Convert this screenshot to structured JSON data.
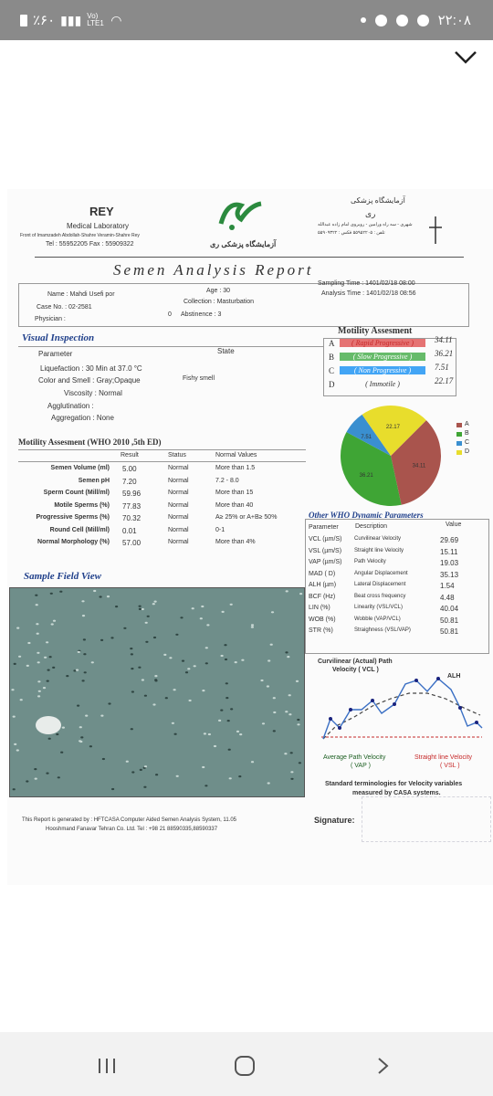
{
  "status_bar": {
    "battery": "٪۶۰",
    "network": "Vo) LTE1",
    "time": "۲۲:۰۸"
  },
  "report": {
    "lab_title": "REY",
    "lab_subtitle": "Medical Laboratory",
    "lab_address": "Front of Imamzadeh Abdollah-Shahre Veramin-Shahre Rey",
    "lab_phone": "Tel : 55952205     Fax : 55909322",
    "lab_fa_title": "آزمایشگاه پزشکی",
    "lab_fa_name": "ری",
    "lab_fa_address": "شهری - سه راه ورامین - روبروی امام زاده عبدالله",
    "lab_fa_phone": "تلفن : ۵۵۹۵۲۲۰۵   فکس : ۵۵۹۰۹۳۲۲",
    "lab_fa_logo_text": "آزمایشگاه پزشکی ری",
    "main_title": "Semen  Analysis  Report",
    "name": "Name : Mahdi Usefi por",
    "case_no": "Case No. : 02-2581",
    "physician": "Physician :",
    "age": "Age : 30",
    "collection": "Collection : Masturbation",
    "abstinence_zero": "0",
    "abstinence": "Abstinence : 3",
    "sampling_time": "Sampling Time : 1401/02/18  08:00",
    "analysis_time": "Analysis Time : 1401/02/18  08:56",
    "visual_inspection": "Visual Inspection",
    "parameter_header": "Parameter",
    "state_header": "State",
    "liquefaction": "Liquefaction :  30 Min at 37.0 °C",
    "color_smell": "Color and Smell :  Gray;Opaque",
    "fishy_smell": "Fishy smell",
    "viscosity": "Viscosity :  Normal",
    "agglutination": "Agglutination :",
    "aggregation": "Aggregation :  None",
    "motility_title": "Motility Assesment",
    "motility_rows": [
      {
        "letter": "A",
        "label": "( Rapid Progressive )",
        "value": "34.11"
      },
      {
        "letter": "B",
        "label": "( Slow Progressive )",
        "value": "36.21"
      },
      {
        "letter": "C",
        "label": "( Non Progressive )",
        "value": "7.51"
      },
      {
        "letter": "D",
        "label": "( Immotile )",
        "value": "22.17"
      }
    ],
    "who_title": "Motility Assesment (WHO 2010 ,5th ED)",
    "who_headers": {
      "result": "Result",
      "status": "Status",
      "normal": "Normal Values"
    },
    "who_rows": [
      {
        "name": "Semen Volume (ml)",
        "result": "5.00",
        "status": "Normal",
        "normal": "More than 1.5"
      },
      {
        "name": "Semen pH",
        "result": "7.20",
        "status": "Normal",
        "normal": "7.2 - 8.0"
      },
      {
        "name": "Sperm Count (Mill/ml)",
        "result": "59.96",
        "status": "Normal",
        "normal": "More than  15"
      },
      {
        "name": "Motile Sperms (%)",
        "result": "77.83",
        "status": "Normal",
        "normal": "More than 40"
      },
      {
        "name": "Progressive Sperms (%)",
        "result": "70.32",
        "status": "Normal",
        "normal": "A≥ 25% or A+B≥ 50%"
      },
      {
        "name": "Round Cell (Mill/ml)",
        "result": "0.01",
        "status": "Normal",
        "normal": "0-1"
      },
      {
        "name": "Normal Morphology (%)",
        "result": "57.00",
        "status": "Normal",
        "normal": "More than  4%"
      }
    ],
    "pie": {
      "legend": [
        "A",
        "B",
        "C",
        "D"
      ],
      "colors": [
        "#a9544d",
        "#3fa535",
        "#3a8fd0",
        "#e8dd2c"
      ],
      "values": [
        34.11,
        36.21,
        7.51,
        22.17
      ],
      "labels": [
        "34.11",
        "36.21",
        "7.51",
        "22.17"
      ]
    },
    "dynamic_title": "Other WHO Dynamic Parameters",
    "dynamic_headers": {
      "param": "Parameter",
      "desc": "Description",
      "value": "Value"
    },
    "dynamic_rows": [
      {
        "param": "VCL (µm/S)",
        "desc": "Curvilinear Velocity",
        "value": "29.69"
      },
      {
        "param": "VSL (µm/S)",
        "desc": "Straight line Velocity",
        "value": "15.11"
      },
      {
        "param": "VAP (µm/S)",
        "desc": "Path Velocity",
        "value": "19.03"
      },
      {
        "param": "MAD ( D)",
        "desc": "Angular Displacement",
        "value": "35.13"
      },
      {
        "param": "ALH (µm)",
        "desc": "Lateral Displacement",
        "value": "1.54"
      },
      {
        "param": "BCF (Hz)",
        "desc": "Beat cross frequency",
        "value": "4.48"
      },
      {
        "param": "LIN (%)",
        "desc": "Linearity (VSL/VCL)",
        "value": "40.04"
      },
      {
        "param": "WOB (%)",
        "desc": "Wobble (VAP/VCL)",
        "value": "50.81"
      },
      {
        "param": "STR (%)",
        "desc": "Straighness (VSL/VAP)",
        "value": "50.81"
      }
    ],
    "sample_field_view": "Sample Field View",
    "curvilinear_label_1": "Curvilinear (Actual) Path",
    "curvilinear_label_2": "Velocity ( VCL )",
    "alh_label": "ALH",
    "avg_path_label_1": "Average Path Velocity",
    "avg_path_label_2": "( VAP )",
    "straight_label_1": "Straight line Velocity",
    "straight_label_2": "( VSL )",
    "standard_note_1": "Standard terminologies for Velocity variables",
    "standard_note_2": "measured by CASA systems.",
    "footer_1": "This Report is generated by : HFTCASA Computer Aided Semen Analysis System,  11.05",
    "footer_2": "Hooshmand Fanavar Tehran Co. Ltd.   Tel : +98 21 88590335,88590337",
    "signature": "Signature:"
  },
  "nav": {
    "recent": "recent-apps",
    "home": "home",
    "back": "back"
  }
}
